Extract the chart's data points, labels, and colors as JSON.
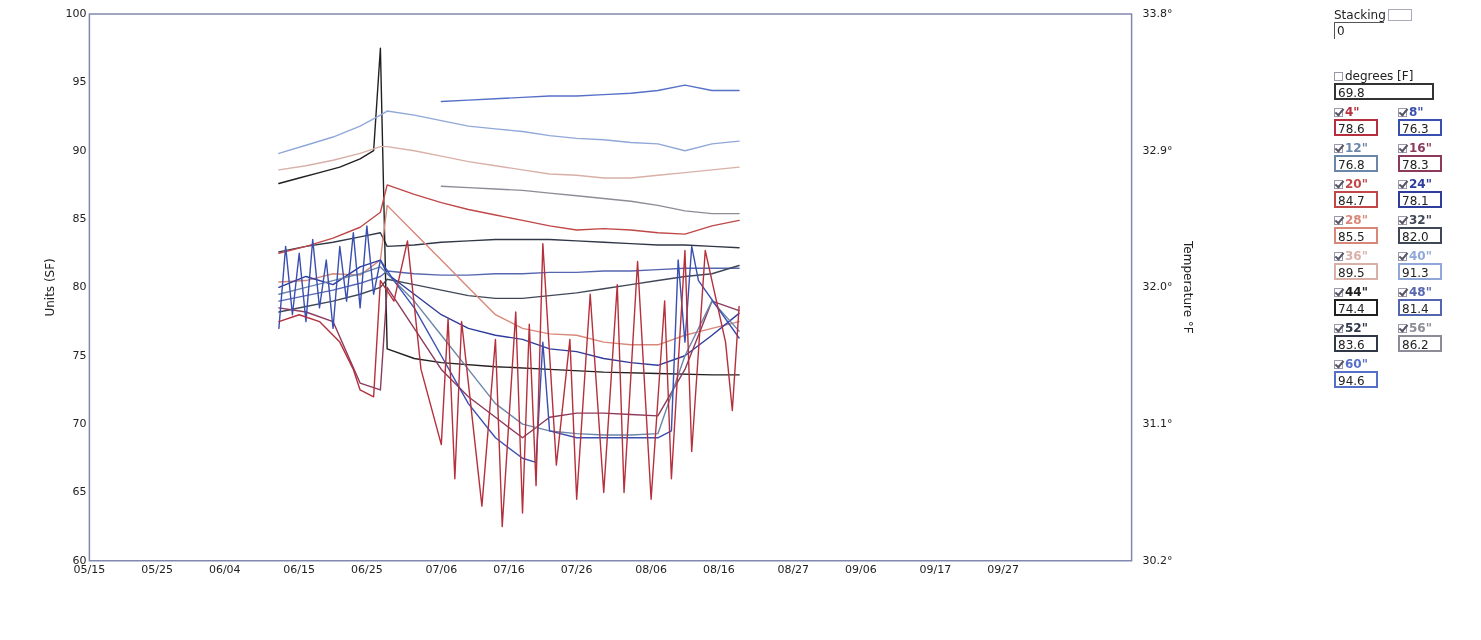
{
  "chart_data": {
    "type": "line",
    "ylabel": "Units (SF)",
    "y2label": "Temperature °F",
    "legend": "right",
    "xlim": [
      "--05-15",
      "--10-16"
    ],
    "xticks": [
      {
        "value": "--05-15",
        "label": "05/15"
      },
      {
        "value": "--05-25",
        "label": "05/25"
      },
      {
        "value": "--06-04",
        "label": "06/04"
      },
      {
        "value": "--06-15",
        "label": "06/15"
      },
      {
        "value": "--06-25",
        "label": "06/25"
      },
      {
        "value": "--07-06",
        "label": "07/06"
      },
      {
        "value": "--07-16",
        "label": "07/16"
      },
      {
        "value": "--07-26",
        "label": "07/26"
      },
      {
        "value": "--08-06",
        "label": "08/06"
      },
      {
        "value": "--08-16",
        "label": "08/16"
      },
      {
        "value": "--08-27",
        "label": "08/27"
      },
      {
        "value": "--09-06",
        "label": "09/06"
      },
      {
        "value": "--09-17",
        "label": "09/17"
      },
      {
        "value": "--09-27",
        "label": "09/27"
      }
    ],
    "ylim": [
      60,
      100
    ],
    "yticks": [
      60,
      65,
      70,
      75,
      80,
      85,
      90,
      95,
      100
    ],
    "y2lim": [
      30.2,
      33.8
    ],
    "y2ticks": [
      {
        "value": 30.2,
        "label": "30.2°"
      },
      {
        "value": 31.1,
        "label": "31.1°"
      },
      {
        "value": 32.0,
        "label": "32.0°"
      },
      {
        "value": 32.9,
        "label": "32.9°"
      },
      {
        "value": 33.8,
        "label": "33.8°"
      }
    ],
    "annotations": [
      "Stacking",
      "0",
      "degrees [F]",
      "69.8",
      "78.6",
      "76.3",
      "76.8",
      "78.3",
      "84.7",
      "78.1",
      "85.5",
      "82.0",
      "89.5",
      "91.3",
      "74.4",
      "81.4",
      "83.6",
      "86.2",
      "94.6"
    ],
    "x": [
      "--06-12",
      "--06-16",
      "--06-20",
      "--06-24",
      "--06-27",
      "--06-28",
      "--07-02",
      "--07-06",
      "--07-10",
      "--07-14",
      "--07-18",
      "--07-22",
      "--07-26",
      "--07-30",
      "--08-03",
      "--08-07",
      "--08-11",
      "--08-15",
      "--08-19"
    ],
    "series": [
      {
        "name": "4\"",
        "color": "#b5303c",
        "x": [
          "--06-12",
          "--06-15",
          "--06-18",
          "--06-21",
          "--06-23",
          "--06-24",
          "--06-26",
          "--06-27",
          "--06-29",
          "--07-01",
          "--07-03",
          "--07-06",
          "--07-07",
          "--07-08",
          "--07-09",
          "--07-12",
          "--07-14",
          "--07-15",
          "--07-17",
          "--07-18",
          "--07-19",
          "--07-20",
          "--07-21",
          "--07-23",
          "--07-25",
          "--07-26",
          "--07-28",
          "--07-30",
          "--08-01",
          "--08-02",
          "--08-04",
          "--08-06",
          "--08-08",
          "--08-09",
          "--08-11",
          "--08-12",
          "--08-14",
          "--08-17",
          "--08-18",
          "--08-19"
        ],
        "values": [
          77.5,
          78.0,
          77.5,
          76.0,
          74.0,
          72.5,
          72.0,
          80.5,
          79.0,
          83.4,
          74.0,
          68.5,
          77.7,
          66.0,
          77.5,
          64.0,
          76.2,
          62.5,
          78.2,
          63.5,
          77.3,
          65.5,
          83.2,
          67.0,
          76.2,
          64.5,
          79.5,
          65.0,
          80.2,
          65.0,
          81.9,
          64.5,
          79.0,
          66.0,
          82.7,
          68.0,
          82.7,
          76.0,
          71.0,
          78.6
        ]
      },
      {
        "name": "8\"",
        "color": "#3a4fb0",
        "x": [
          "--06-12",
          "--06-13",
          "--06-14",
          "--06-15",
          "--06-16",
          "--06-17",
          "--06-18",
          "--06-19",
          "--06-20",
          "--06-21",
          "--06-22",
          "--06-23",
          "--06-24",
          "--06-25",
          "--06-26",
          "--06-27",
          "--06-29",
          "--07-02",
          "--07-06",
          "--07-10",
          "--07-14",
          "--07-18",
          "--07-20",
          "--07-21",
          "--07-22",
          "--07-26",
          "--07-30",
          "--08-03",
          "--08-07",
          "--08-09",
          "--08-10",
          "--08-11",
          "--08-12",
          "--08-13",
          "--08-19"
        ],
        "values": [
          77.0,
          83.0,
          78.0,
          82.5,
          77.5,
          83.5,
          78.5,
          82.0,
          77.0,
          83.0,
          79.0,
          84.0,
          78.5,
          84.5,
          79.5,
          82.0,
          80.5,
          78.5,
          75.0,
          71.5,
          69.0,
          67.5,
          67.2,
          76.0,
          69.5,
          69.0,
          69.0,
          69.0,
          69.0,
          69.5,
          82.0,
          76.0,
          83.0,
          80.5,
          76.3
        ]
      },
      {
        "name": "12\"",
        "color": "#6a86a8",
        "values": [
          79.5,
          80.0,
          80.5,
          81.0,
          81.5,
          81.0,
          79.0,
          76.5,
          74.0,
          71.5,
          70.0,
          69.5,
          69.3,
          69.2,
          69.2,
          69.3,
          75.0,
          79.0,
          76.8
        ]
      },
      {
        "name": "16\"",
        "color": "#8c3a5c",
        "values": [
          78.5,
          78.2,
          77.5,
          73.0,
          72.5,
          80.0,
          77.0,
          74.0,
          72.0,
          70.5,
          69.0,
          70.5,
          70.8,
          70.8,
          70.7,
          70.6,
          74.0,
          79.0,
          78.3
        ]
      },
      {
        "name": "20\"",
        "color": "#c04848",
        "values": [
          82.5,
          83.0,
          83.6,
          84.4,
          85.5,
          87.5,
          86.8,
          86.2,
          85.7,
          85.3,
          84.9,
          84.5,
          84.2,
          84.3,
          84.2,
          84.0,
          83.9,
          84.5,
          84.9
        ]
      },
      {
        "name": "24\"",
        "color": "#2e3c9c",
        "values": [
          80.0,
          80.8,
          80.2,
          81.5,
          82.0,
          81.0,
          79.5,
          78.0,
          77.0,
          76.5,
          76.2,
          75.5,
          75.3,
          74.8,
          74.5,
          74.3,
          75.0,
          76.5,
          78.1
        ]
      },
      {
        "name": "28\"",
        "color": "#d88878",
        "values": [
          80.4,
          80.5,
          81.0,
          80.9,
          82.0,
          86.0,
          84.0,
          82.0,
          80.0,
          78.0,
          77.0,
          76.6,
          76.5,
          76.0,
          75.8,
          75.8,
          76.5,
          77.0,
          77.5
        ]
      },
      {
        "name": "32\"",
        "color": "#404858",
        "values": [
          78.2,
          78.6,
          79.0,
          79.5,
          80.0,
          80.6,
          80.2,
          79.8,
          79.4,
          79.2,
          79.2,
          79.4,
          79.6,
          79.9,
          80.2,
          80.5,
          80.8,
          81.0,
          81.6
        ]
      },
      {
        "name": "36\"",
        "color": "#d8b0a8",
        "values": [
          88.6,
          88.9,
          89.3,
          89.8,
          90.3,
          90.3,
          90.0,
          89.6,
          89.2,
          88.9,
          88.6,
          88.3,
          88.2,
          88.0,
          88.0,
          88.2,
          88.4,
          88.6,
          88.8
        ]
      },
      {
        "name": "40\"",
        "color": "#90a8d8",
        "values": [
          89.8,
          90.4,
          91.0,
          91.8,
          92.6,
          92.9,
          92.6,
          92.2,
          91.8,
          91.6,
          91.4,
          91.1,
          90.9,
          90.8,
          90.6,
          90.5,
          90.0,
          90.5,
          90.7
        ]
      },
      {
        "name": "44\"",
        "color": "#202020",
        "x": [
          "--06-12",
          "--06-15",
          "--06-18",
          "--06-21",
          "--06-24",
          "--06-26",
          "--06-27",
          "--06-28",
          "--07-02",
          "--07-06",
          "--07-14",
          "--07-22",
          "--07-30",
          "--08-07",
          "--08-15",
          "--08-19"
        ],
        "values": [
          87.6,
          88.0,
          88.4,
          88.8,
          89.4,
          90.0,
          97.5,
          75.5,
          74.8,
          74.5,
          74.2,
          74.0,
          73.8,
          73.7,
          73.6,
          73.6
        ]
      },
      {
        "name": "48\"",
        "color": "#5566b0",
        "values": [
          79.0,
          79.4,
          79.8,
          80.3,
          80.8,
          81.2,
          81.0,
          80.9,
          80.9,
          81.0,
          81.0,
          81.1,
          81.1,
          81.2,
          81.2,
          81.3,
          81.4,
          81.4,
          81.4
        ]
      },
      {
        "name": "52\"",
        "color": "#303848",
        "values": [
          82.6,
          83.0,
          83.3,
          83.7,
          84.0,
          83.0,
          83.1,
          83.3,
          83.4,
          83.5,
          83.5,
          83.5,
          83.4,
          83.3,
          83.2,
          83.1,
          83.1,
          83.0,
          82.9
        ]
      },
      {
        "name": "56\"",
        "color": "#8c8c98",
        "values": [
          null,
          null,
          null,
          null,
          null,
          null,
          null,
          87.4,
          87.3,
          87.2,
          87.1,
          86.9,
          86.7,
          86.5,
          86.3,
          86.0,
          85.6,
          85.4,
          85.4
        ]
      },
      {
        "name": "60\"",
        "color": "#5570c8",
        "values": [
          null,
          null,
          null,
          null,
          null,
          null,
          null,
          93.6,
          93.7,
          93.8,
          93.9,
          94.0,
          94.0,
          94.1,
          94.2,
          94.4,
          94.8,
          94.4,
          94.4
        ]
      }
    ]
  }
}
